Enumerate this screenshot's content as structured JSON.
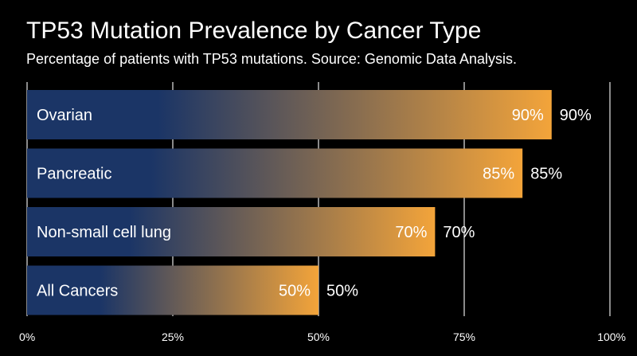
{
  "chart_data": {
    "type": "bar",
    "orientation": "horizontal",
    "title": "TP53 Mutation Prevalence by Cancer Type",
    "subtitle": "Percentage of patients with TP53 mutations. Source: Genomic Data Analysis.",
    "categories": [
      "Ovarian",
      "Pancreatic",
      "Non-small cell lung",
      "All Cancers"
    ],
    "values": [
      90,
      85,
      70,
      50
    ],
    "value_labels": [
      "90%",
      "85%",
      "70%",
      "50%"
    ],
    "xlim": [
      0,
      100
    ],
    "x_ticks": [
      0,
      25,
      50,
      75,
      100
    ],
    "x_tick_labels": [
      "0%",
      "25%",
      "50%",
      "75%",
      "100%"
    ],
    "grid": true,
    "colors": {
      "background": "#000000",
      "bar_start": "#1b3566",
      "bar_end": "#f3a43a",
      "text": "#ffffff",
      "grid": "#e6e6e6"
    }
  }
}
